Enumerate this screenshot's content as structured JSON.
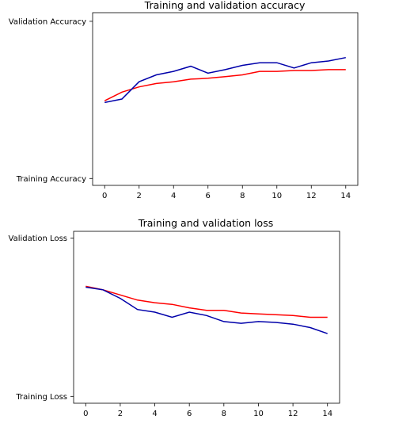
{
  "chart_data": [
    {
      "type": "line",
      "title": "Training and validation accuracy",
      "xlabel": "",
      "ylabel": "",
      "xlim": [
        -0.7,
        14.7
      ],
      "ylim": [
        0,
        1
      ],
      "xticks": [
        0,
        2,
        4,
        6,
        8,
        10,
        12,
        14
      ],
      "yticks": [
        {
          "value": 0.04,
          "label": "Training Accuracy"
        },
        {
          "value": 0.95,
          "label": "Validation Accuracy"
        }
      ],
      "grid": false,
      "series": [
        {
          "color": "#ff0000",
          "x": [
            0,
            1,
            2,
            3,
            4,
            5,
            6,
            7,
            8,
            9,
            10,
            11,
            12,
            13,
            14
          ],
          "values": [
            0.49,
            0.54,
            0.57,
            0.59,
            0.6,
            0.615,
            0.62,
            0.63,
            0.64,
            0.66,
            0.66,
            0.665,
            0.665,
            0.67,
            0.67
          ]
        },
        {
          "color": "#0000aa",
          "x": [
            0,
            1,
            2,
            3,
            4,
            5,
            6,
            7,
            8,
            9,
            10,
            11,
            12,
            13,
            14
          ],
          "values": [
            0.48,
            0.5,
            0.6,
            0.64,
            0.66,
            0.69,
            0.65,
            0.67,
            0.695,
            0.71,
            0.71,
            0.68,
            0.71,
            0.72,
            0.74
          ]
        }
      ]
    },
    {
      "type": "line",
      "title": "Training and validation loss",
      "xlabel": "",
      "ylabel": "",
      "xlim": [
        -0.7,
        14.7
      ],
      "ylim": [
        0,
        1
      ],
      "xticks": [
        0,
        2,
        4,
        6,
        8,
        10,
        12,
        14
      ],
      "yticks": [
        {
          "value": 0.04,
          "label": "Training Loss"
        },
        {
          "value": 0.96,
          "label": "Validation Loss"
        }
      ],
      "grid": false,
      "series": [
        {
          "color": "#ff0000",
          "x": [
            0,
            1,
            2,
            3,
            4,
            5,
            6,
            7,
            8,
            9,
            10,
            11,
            12,
            13,
            14
          ],
          "values": [
            0.68,
            0.66,
            0.63,
            0.6,
            0.585,
            0.575,
            0.555,
            0.54,
            0.54,
            0.525,
            0.52,
            0.515,
            0.51,
            0.5,
            0.5
          ]
        },
        {
          "color": "#0000aa",
          "x": [
            0,
            1,
            2,
            3,
            4,
            5,
            6,
            7,
            8,
            9,
            10,
            11,
            12,
            13,
            14
          ],
          "values": [
            0.675,
            0.66,
            0.61,
            0.545,
            0.53,
            0.5,
            0.53,
            0.51,
            0.475,
            0.465,
            0.475,
            0.47,
            0.46,
            0.44,
            0.405
          ]
        }
      ]
    }
  ]
}
